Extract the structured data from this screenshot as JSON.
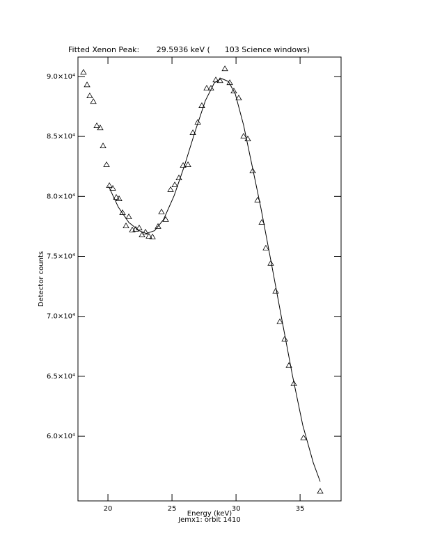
{
  "chart_data": {
    "type": "scatter",
    "title": "Fitted Xenon Peak:       29.5936 keV (      103 Science windows)",
    "x_label": "Energy (keV)",
    "subtitle": "Jemx1: orbit 1410",
    "y_label": "Detector counts",
    "xlim": [
      17.66,
      38.2
    ],
    "ylim": [
      54610,
      91620
    ],
    "xticks": [
      20,
      25,
      30,
      35
    ],
    "yticks": [
      {
        "value": 60000,
        "label": "6.0×10⁴"
      },
      {
        "value": 65000,
        "label": "6.5×10⁴"
      },
      {
        "value": 70000,
        "label": "7.0×10⁴"
      },
      {
        "value": 75000,
        "label": "7.5×10⁴"
      },
      {
        "value": 80000,
        "label": "8.0×10⁴"
      },
      {
        "value": 85000,
        "label": "8.5×10⁴"
      },
      {
        "value": 90000,
        "label": "9.0×10⁴"
      }
    ],
    "series": [
      {
        "type": "scatter",
        "marker": "triangle",
        "color": "#000000",
        "x": [
          18.09,
          18.37,
          18.58,
          18.86,
          19.13,
          19.4,
          19.62,
          19.89,
          20.11,
          20.38,
          20.65,
          20.87,
          21.14,
          21.41,
          21.63,
          21.9,
          22.17,
          22.44,
          22.66,
          22.93,
          23.2,
          23.48,
          23.91,
          24.18,
          24.51,
          24.89,
          25.22,
          25.54,
          25.87,
          26.25,
          26.63,
          27.01,
          27.33,
          27.71,
          28.04,
          28.42,
          28.75,
          29.13,
          29.51,
          29.83,
          30.21,
          30.59,
          30.92,
          31.3,
          31.68,
          32.01,
          32.33,
          32.71,
          33.09,
          33.42,
          33.8,
          34.13,
          34.51,
          35.27,
          36.57
        ],
        "values": [
          90350,
          89300,
          88380,
          87910,
          85890,
          85710,
          84210,
          82640,
          80900,
          80670,
          79920,
          79800,
          78640,
          77540,
          78300,
          77200,
          77250,
          77370,
          76790,
          77020,
          76670,
          76620,
          77490,
          78700,
          78070,
          80560,
          80960,
          81540,
          82580,
          82640,
          85310,
          86180,
          87570,
          89020,
          89020,
          89710,
          89650,
          90640,
          89480,
          88780,
          88200,
          85020,
          84790,
          82120,
          79690,
          77830,
          75690,
          74420,
          72100,
          69550,
          68100,
          65900,
          64390,
          59870,
          55410
        ]
      },
      {
        "type": "line",
        "color": "#000000",
        "x": [
          20.05,
          20.81,
          21.63,
          22.44,
          22.99,
          23.64,
          24.34,
          25.16,
          25.98,
          26.79,
          27.6,
          28.31,
          28.86,
          29.4,
          29.94,
          30.59,
          31.25,
          31.95,
          32.77,
          33.58,
          34.4,
          35.21,
          36.03,
          36.57
        ],
        "values": [
          80850,
          79110,
          77830,
          77140,
          76910,
          77140,
          78070,
          80040,
          82580,
          85370,
          87970,
          89480,
          89830,
          89590,
          88550,
          85940,
          82580,
          78990,
          74360,
          69720,
          65090,
          60920,
          57790,
          56220
        ]
      }
    ]
  }
}
